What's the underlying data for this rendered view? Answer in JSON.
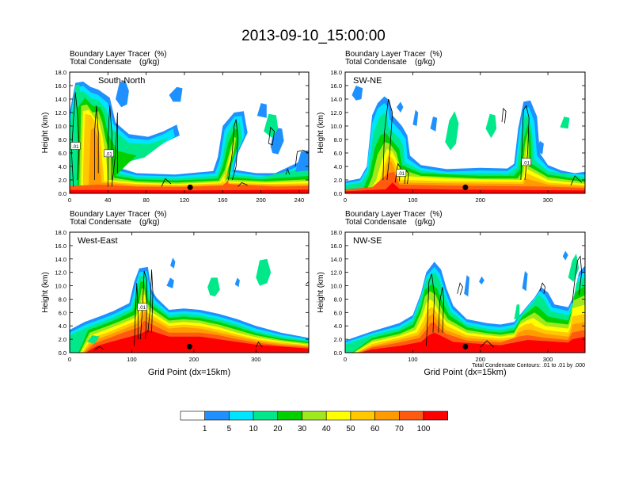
{
  "title": "2013-09-10_15:00:00",
  "chart_data": [
    {
      "type": "heatmap",
      "label": "South-North",
      "header_left": [
        "Boundary Layer Tracer",
        "Total Condensate"
      ],
      "header_units": [
        "(%)",
        "(g/kg)"
      ],
      "ylabel": "Height (km)",
      "xlabel": "",
      "xlim": [
        0,
        250
      ],
      "ylim": [
        0,
        18
      ],
      "xticks": [
        0,
        40,
        80,
        120,
        160,
        200,
        240
      ],
      "yticks": [
        "0.0",
        "2.0",
        "4.0",
        "6.0",
        "8.0",
        "10.0",
        "12.0",
        "14.0",
        "16.0",
        "18.0"
      ],
      "marker_x": 126,
      "contour_labels": [
        {
          "text": ".01",
          "x": 6,
          "y": 7.0
        },
        {
          "text": ".01",
          "x": 41,
          "y": 5.9
        }
      ]
    },
    {
      "type": "heatmap",
      "label": "SW-NE",
      "header_left": [
        "Boundary Layer Tracer",
        "Total Condensate"
      ],
      "header_units": [
        "(%)",
        "(g/kg)"
      ],
      "ylabel": "Height (km)",
      "xlabel": "",
      "xlim": [
        0,
        355
      ],
      "ylim": [
        0,
        18
      ],
      "xticks": [
        0,
        100,
        200,
        300
      ],
      "yticks": [
        "0.0",
        "2.0",
        "4.0",
        "6.0",
        "8.0",
        "10.0",
        "12.0",
        "14.0",
        "16.0",
        "18.0"
      ],
      "marker_x": 178,
      "contour_labels": [
        {
          "text": ".01",
          "x": 83,
          "y": 3.0
        },
        {
          "text": ".01",
          "x": 268,
          "y": 4.6
        }
      ]
    },
    {
      "type": "heatmap",
      "label": "West-East",
      "header_left": [
        "Boundary Layer Tracer",
        "Total Condensate"
      ],
      "header_units": [
        "(%)",
        "(g/kg)"
      ],
      "ylabel": "Height (km)",
      "xlabel": "Grid Point (dx=15km)",
      "xlim": [
        0,
        385
      ],
      "ylim": [
        0,
        18
      ],
      "xticks": [
        0,
        100,
        200,
        300
      ],
      "yticks": [
        "0.0",
        "2.0",
        "4.0",
        "6.0",
        "8.0",
        "10.0",
        "12.0",
        "14.0",
        "16.0",
        "18.0"
      ],
      "marker_x": 193,
      "contour_labels": [
        {
          "text": ".01",
          "x": 117,
          "y": 6.8
        }
      ]
    },
    {
      "type": "heatmap",
      "label": "NW-SE",
      "header_left": [
        "Boundary Layer Tracer",
        "Total Condensate"
      ],
      "header_units": [
        "(%)",
        "(g/kg)"
      ],
      "ylabel": "Height (km)",
      "xlabel": "Grid Point (dx=15km)",
      "xlim": [
        0,
        355
      ],
      "ylim": [
        0,
        18
      ],
      "xticks": [
        0,
        100,
        200,
        300
      ],
      "yticks": [
        "0.0",
        "2.0",
        "4.0",
        "6.0",
        "8.0",
        "10.0",
        "12.0",
        "14.0",
        "16.0",
        "18.0"
      ],
      "marker_x": 178,
      "contour_labels": [],
      "footnote": "Total Condensate Contours: .01 to .01 by .000"
    }
  ],
  "colorbar": {
    "levels": [
      "1",
      "5",
      "10",
      "20",
      "30",
      "40",
      "50",
      "60",
      "70",
      "100"
    ],
    "colors": [
      "#ffffff",
      "#1e90ff",
      "#00e5ff",
      "#00e88a",
      "#00d000",
      "#9ee81c",
      "#ffff00",
      "#ffc800",
      "#ff9a00",
      "#ff5a10",
      "#ff0000"
    ]
  }
}
